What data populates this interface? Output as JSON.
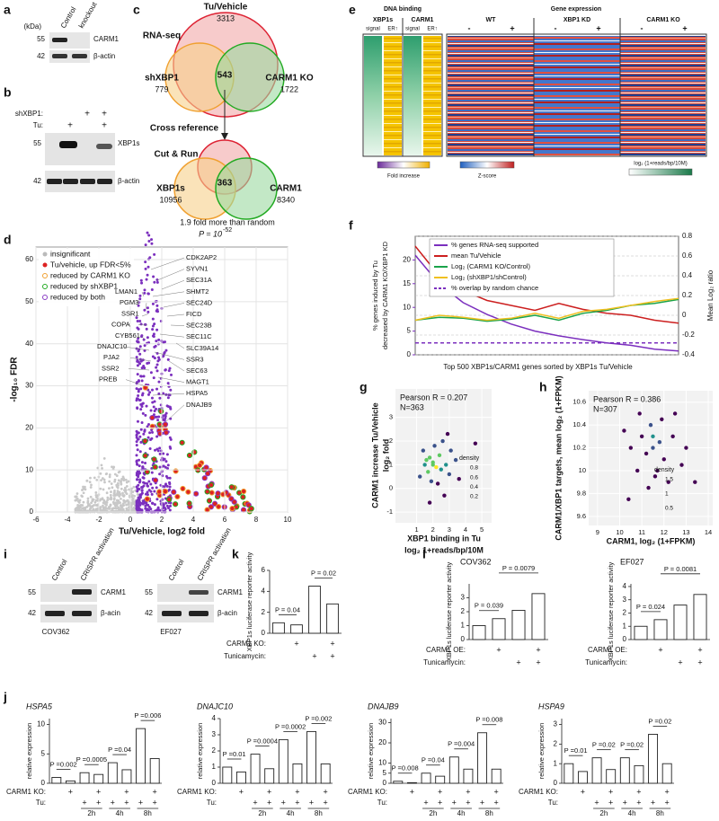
{
  "a": {
    "letter": "a",
    "unit": "(kDa)",
    "lanes": [
      "Control",
      "knockout"
    ],
    "markers": [
      "55",
      "42"
    ],
    "bands": [
      "CARM1",
      "β-actin"
    ]
  },
  "b": {
    "letter": "b",
    "rows": [
      "shXBP1:",
      "Tu:"
    ],
    "marks": [
      [
        null,
        null,
        "+",
        "+"
      ],
      [
        null,
        "+",
        null,
        "+"
      ]
    ],
    "markers": [
      "55",
      "42"
    ],
    "bands": [
      "XBP1s",
      "β-actin"
    ]
  },
  "c": {
    "letter": "c",
    "rna_seq": "RNA-seq",
    "tu": "Tu/Vehicle",
    "tu_n": "3313",
    "sh": "shXBP1",
    "sh_n": "779",
    "overlap1": "543",
    "ko": "CARM1 KO",
    "ko_n": "1722",
    "cross": "Cross reference",
    "cut": "Cut & Run",
    "xbp1s": "XBP1s",
    "xbp1s_n": "10956",
    "overlap2": "363",
    "carm1": "CARM1",
    "carm1_n": "8340",
    "fold": "1.9 fold more than random",
    "p": "P = 10",
    "p_exp": "-52"
  },
  "d": {
    "letter": "d",
    "type": "scatter",
    "legend": [
      "insignificant",
      "Tu/vehicle, up FDR<5%",
      "reduced by CARM1 KO",
      "reduced by shXBP1",
      "reduced by both"
    ],
    "genes_right": [
      "CDK2AP2",
      "SYVN1",
      "SEC31A",
      "SHMT2",
      "SEC24D",
      "FICD",
      "SEC23B",
      "SEC11C",
      "SLC39A14",
      "SSR3",
      "SEC63",
      "MAGT1",
      "HSPA5",
      "DNAJB9"
    ],
    "genes_left": [
      "LMAN1",
      "PGM3",
      "SSR1",
      "COPA",
      "CYB561",
      "DNAJC10",
      "PJA2",
      "SSR2",
      "PREB"
    ],
    "xlabel": "Tu/Vehicle, log2 fold",
    "ylabel": "-log₁₀ FDR",
    "xlim": [
      -6,
      10
    ],
    "xticks": [
      -6,
      -4,
      -2,
      0,
      2,
      4,
      6,
      8,
      10
    ],
    "ylim": [
      0,
      63
    ],
    "yticks": [
      0,
      10,
      20,
      30,
      40,
      50,
      60
    ],
    "grid": true
  },
  "e": {
    "letter": "e",
    "dna": "DNA binding",
    "expr": "Gene expression",
    "cols1": [
      "XBP1s",
      "CARM1"
    ],
    "sub1": [
      "signal",
      "ER↑",
      "signal",
      "ER↑"
    ],
    "cols2": [
      "WT",
      "XBP1 KD",
      "CARM1 KO"
    ],
    "signs": [
      "-",
      "+",
      "-",
      "+",
      "-",
      "+"
    ],
    "legend": [
      "Fold increase",
      "Z-score",
      "log₂ (1+reads/bp/10M)"
    ]
  },
  "f": {
    "letter": "f",
    "type": "line",
    "ylabel": [
      "% genes induced by Tu",
      "decreased by CARM1 KO/XBP1 KD"
    ],
    "y2label": "Mean Log₂ ratio",
    "xlabel": "Top 500 XBP1s/CARM1 genes sorted by XBP1s Tu/Vehicle",
    "ylim": [
      0,
      25
    ],
    "yticks": [
      0,
      5,
      10,
      15,
      20
    ],
    "y2lim": [
      -0.4,
      0.8
    ],
    "y2ticks": [
      -0.4,
      -0.2,
      0,
      0.2,
      0.4,
      0.6,
      0.8
    ],
    "grid": true,
    "series": [
      {
        "name": "% genes RNA-seq supported",
        "color": "#7b2fbe",
        "values": [
          21,
          15,
          11,
          8.5,
          6.5,
          5,
          4,
          3.2,
          2.5,
          2,
          1.2,
          0.8
        ]
      },
      {
        "name": "mean Tu/Vehicle",
        "color": "#cc1f1f",
        "axis": "y2",
        "values": [
          0.7,
          0.4,
          0.25,
          0.15,
          0.1,
          0.05,
          0.12,
          0.06,
          0.02,
          0,
          -0.05,
          -0.08
        ]
      },
      {
        "name": "Log₂ (CARM1 KO/Control)",
        "color": "#1aa34a",
        "axis": "y2",
        "values": [
          -0.05,
          -0.02,
          -0.03,
          -0.06,
          -0.04,
          0,
          -0.05,
          0.02,
          0.05,
          0.1,
          0.12,
          0.16
        ]
      },
      {
        "name": "Log₂ (shXBP1/shControl)",
        "color": "#f0c020",
        "axis": "y2",
        "values": [
          -0.05,
          0,
          -0.02,
          -0.05,
          -0.03,
          0.02,
          -0.03,
          0.04,
          0.06,
          0.1,
          0.14,
          0.17
        ]
      },
      {
        "name": "% overlap by random chance",
        "color": "#7b2fbe",
        "dash": true,
        "values": [
          2.5,
          2.5,
          2.5,
          2.5,
          2.5,
          2.5,
          2.5,
          2.5,
          2.5,
          2.5,
          2.5,
          2.5
        ]
      }
    ]
  },
  "g": {
    "letter": "g",
    "type": "scatter",
    "pearson": "Pearson R = 0.207",
    "n": "N=363",
    "ylabel": [
      "CARM1 increase Tu/Vehicle",
      "log₂ fold"
    ],
    "xlabel": [
      "XBP1 binding in Tu",
      "log₂ 1+reads/bp/10M"
    ],
    "xlim": [
      -0.3,
      5.6
    ],
    "xticks": [
      1,
      2,
      3,
      4,
      5
    ],
    "ylim": [
      -1.45,
      4.2
    ],
    "yticks": [
      -1,
      0,
      1,
      2,
      3
    ],
    "density_title": "density",
    "density_ticks": [
      0.2,
      0.4,
      0.6,
      0.8
    ],
    "points": [
      [
        1.5,
        1.0
      ],
      [
        1.8,
        1.3
      ],
      [
        2.0,
        1.1
      ],
      [
        2.2,
        0.9
      ],
      [
        1.7,
        0.7
      ],
      [
        2.4,
        1.4
      ],
      [
        2.8,
        1.0
      ],
      [
        3.0,
        0.6
      ],
      [
        1.4,
        1.6
      ],
      [
        2.1,
        1.8
      ],
      [
        2.6,
        2.0
      ],
      [
        1.9,
        0.3
      ],
      [
        2.3,
        0.2
      ],
      [
        3.4,
        1.2
      ],
      [
        4.6,
        1.9
      ],
      [
        1.6,
        1.2
      ],
      [
        2.0,
        1.0
      ],
      [
        2.5,
        0.8
      ],
      [
        1.2,
        0.5
      ],
      [
        3.1,
        1.6
      ],
      [
        2.7,
        -0.3
      ],
      [
        1.8,
        -0.6
      ],
      [
        3.6,
        0.4
      ],
      [
        2.9,
        2.3
      ]
    ]
  },
  "h": {
    "letter": "h",
    "type": "scatter",
    "pearson": "Pearson R = 0.386",
    "n": "N=307",
    "ylabel": [
      "CARM1/XBP1 targets, mean log₂ (1+FPKM)"
    ],
    "xlabel": [
      "CARM1, log₂ (1+FPKM)"
    ],
    "xlim": [
      8.6,
      14.2
    ],
    "xticks": [
      9,
      10,
      11,
      12,
      13,
      14
    ],
    "ylim": [
      9.52,
      10.7
    ],
    "yticks": [
      9.6,
      9.8,
      10.0,
      10.2,
      10.4,
      10.6
    ],
    "density_title": "density",
    "density_ticks": [
      0.5,
      1.0,
      1.5
    ],
    "points": [
      [
        11.5,
        10.2
      ],
      [
        11.2,
        10.15
      ],
      [
        11.8,
        10.25
      ],
      [
        11.0,
        10.3
      ],
      [
        12.0,
        10.1
      ],
      [
        11.4,
        10.4
      ],
      [
        10.8,
        10.0
      ],
      [
        12.4,
        10.3
      ],
      [
        11.6,
        9.95
      ],
      [
        10.5,
        10.2
      ],
      [
        12.8,
        10.05
      ],
      [
        11.9,
        10.45
      ],
      [
        10.2,
        10.35
      ],
      [
        13.0,
        10.2
      ],
      [
        11.3,
        9.85
      ],
      [
        12.2,
        9.9
      ],
      [
        10.9,
        10.5
      ],
      [
        11.7,
        10.0
      ],
      [
        13.4,
        9.9
      ],
      [
        10.4,
        9.75
      ],
      [
        11.5,
        10.3
      ],
      [
        12.5,
        10.5
      ]
    ]
  },
  "i": {
    "letter": "i",
    "lanes": [
      "Control",
      "CRISPR activation"
    ],
    "bands": [
      "CARM1",
      "β-acin"
    ],
    "markers": [
      "55",
      "42"
    ],
    "cells": [
      "COV362",
      "EF027"
    ]
  },
  "j": {
    "letter": "j",
    "type": "bar",
    "ylabel": "relative expression",
    "times": [
      "2h",
      "4h",
      "8h"
    ],
    "rows": [
      {
        "label": "CARM1 KO:",
        "marks": [
          null,
          "+",
          null,
          "+",
          null,
          "+",
          null,
          "+"
        ]
      },
      {
        "label": "Tu:",
        "marks": [
          null,
          null,
          "+",
          "+",
          "+",
          "+",
          "+",
          "+"
        ]
      }
    ],
    "charts": [
      {
        "title": "HSPA5",
        "values": [
          1,
          0.4,
          1.8,
          1.5,
          3.5,
          2.3,
          9.3,
          4.2
        ],
        "ylim": [
          0,
          11
        ],
        "yticks": [
          0,
          5,
          10
        ],
        "p": [
          "P =0.002",
          "P =0.0005",
          "P =0.04",
          "P =0.006"
        ]
      },
      {
        "title": "DNAJC10",
        "values": [
          1,
          0.7,
          1.8,
          0.9,
          2.7,
          1.2,
          3.2,
          1.2
        ],
        "ylim": [
          0,
          4
        ],
        "yticks": [
          0,
          1,
          2,
          3,
          4
        ],
        "p": [
          "P =0.01",
          "P =0.0004",
          "P =0.0002",
          "P =0.002"
        ]
      },
      {
        "title": "DNAJB9",
        "values": [
          1,
          0.3,
          5,
          3.5,
          13,
          7,
          25,
          7
        ],
        "ylim": [
          0,
          32
        ],
        "yticks": [
          0,
          5,
          10,
          20,
          30
        ],
        "p": [
          "P =0.008",
          "P =0.04",
          "P =0.004",
          "P =0.008"
        ]
      },
      {
        "title": "HSPA9",
        "values": [
          1,
          0.6,
          1.3,
          0.7,
          1.3,
          0.9,
          2.5,
          1.0
        ],
        "ylim": [
          0,
          3.3
        ],
        "yticks": [
          0,
          1,
          2,
          3
        ],
        "p": [
          "P =0.01",
          "P =0.02",
          "P =0.02",
          "P =0.02"
        ]
      }
    ]
  },
  "k": {
    "letter": "k",
    "type": "bar",
    "ylabel": "XBP1s luciferase reporter activity",
    "values": [
      1,
      0.8,
      4.5,
      2.8
    ],
    "ylim": [
      0,
      6
    ],
    "yticks": [
      0,
      2,
      4,
      6
    ],
    "p": [
      "P = 0.04",
      "P = 0.02"
    ],
    "rows": [
      {
        "label": "CARM1 KO:",
        "marks": [
          null,
          "+",
          null,
          "+"
        ]
      },
      {
        "label": "Tunicamycin:",
        "marks": [
          null,
          null,
          "+",
          "+"
        ]
      }
    ]
  },
  "l": {
    "letter": "l",
    "type": "bar",
    "ylabel": "XBP1s luciferase reporter activity",
    "rows": [
      {
        "label": "CARM1 OE:",
        "marks": [
          null,
          "+",
          null,
          "+"
        ]
      },
      {
        "label": "Tunicamycin:",
        "marks": [
          null,
          null,
          "+",
          "+"
        ]
      }
    ],
    "charts": [
      {
        "title": "COV362",
        "values": [
          1,
          1.5,
          2.1,
          3.3
        ],
        "ylim": [
          0,
          4
        ],
        "yticks": [
          0,
          1,
          2,
          3
        ],
        "p": [
          "P = 0.039",
          "P = 0.0079"
        ]
      },
      {
        "title": "EF027",
        "values": [
          1,
          1.5,
          2.6,
          3.4
        ],
        "ylim": [
          0,
          4.2
        ],
        "yticks": [
          0,
          1,
          2,
          3,
          4
        ],
        "p": [
          "P = 0.024",
          "P = 0.0081"
        ]
      }
    ]
  }
}
